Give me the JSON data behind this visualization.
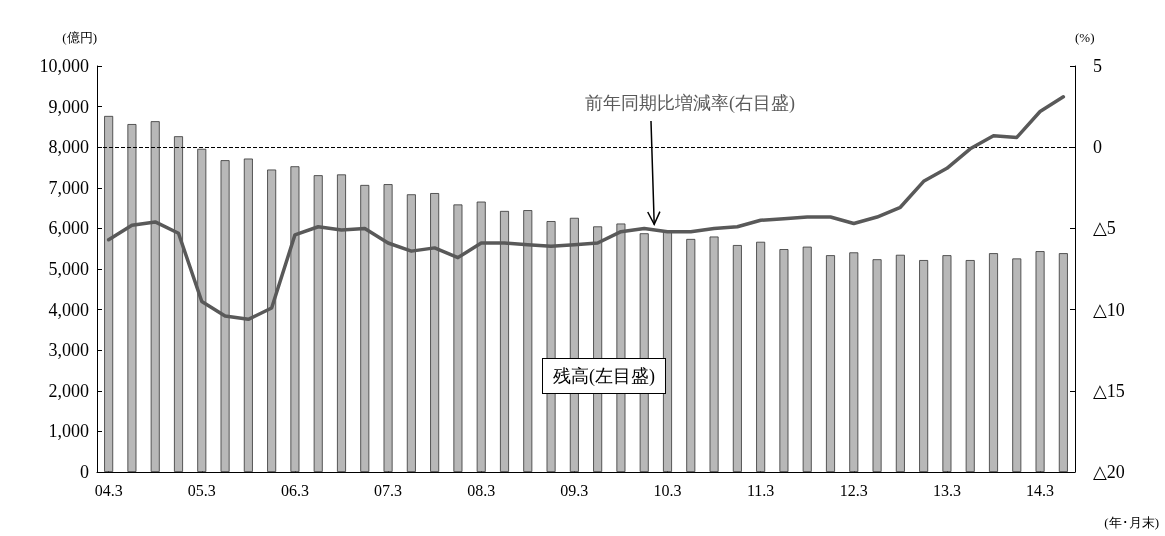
{
  "chart_data": {
    "type": "bar",
    "ylabel": "(億円)",
    "y2label": "(%)",
    "xlabel": "(年･月末)",
    "categories": [
      "04.3",
      null,
      null,
      null,
      "05.3",
      null,
      null,
      null,
      "06.3",
      null,
      null,
      null,
      "07.3",
      null,
      null,
      null,
      "08.3",
      null,
      null,
      null,
      "09.3",
      null,
      null,
      null,
      "10.3",
      null,
      null,
      null,
      "11.3",
      null,
      null,
      null,
      "12.3",
      null,
      null,
      null,
      "13.3",
      null,
      null,
      null,
      "14.3",
      null
    ],
    "series": [
      {
        "name": "残高(左目盛)",
        "color": "#b8b8b8",
        "values": [
          8770,
          8570,
          8640,
          8270,
          7960,
          7680,
          7720,
          7450,
          7530,
          7310,
          7330,
          7070,
          7090,
          6840,
          6870,
          6590,
          6660,
          6430,
          6450,
          6180,
          6260,
          6050,
          6120,
          5880,
          5920,
          5740,
          5800,
          5590,
          5670,
          5490,
          5550,
          5340,
          5410,
          5240,
          5350,
          5220,
          5340,
          5220,
          5390,
          5260,
          5440,
          5390
        ]
      },
      {
        "name": "前年同期比増減率(右目盛)",
        "type": "line",
        "axis": "y2",
        "color": "#595959",
        "values": [
          -5.7,
          -4.8,
          -4.6,
          -5.3,
          -9.5,
          -10.4,
          -10.6,
          -9.9,
          -5.4,
          -4.9,
          -5.1,
          -5.0,
          -5.9,
          -6.4,
          -6.2,
          -6.8,
          -5.9,
          -5.9,
          -6.0,
          -6.1,
          -6.0,
          -5.9,
          -5.2,
          -5.0,
          -5.2,
          -5.2,
          -5.0,
          -4.9,
          -4.5,
          -4.4,
          -4.3,
          -4.3,
          -4.7,
          -4.3,
          -3.7,
          -2.1,
          -1.3,
          -0.1,
          0.7,
          0.6,
          2.2,
          3.1
        ]
      }
    ],
    "ylim": [
      0,
      10000
    ],
    "yticks": [
      0,
      {
        "value": 1000,
        "label": "1,000"
      },
      {
        "value": 2000,
        "label": "2,000"
      },
      {
        "value": 3000,
        "label": "3,000"
      },
      {
        "value": 4000,
        "label": "4,000"
      },
      {
        "value": 5000,
        "label": "5,000"
      },
      {
        "value": 6000,
        "label": "6,000"
      },
      {
        "value": 7000,
        "label": "7,000"
      },
      {
        "value": 8000,
        "label": "8,000"
      },
      {
        "value": 9000,
        "label": "9,000"
      },
      {
        "value": 10000,
        "label": "10,000"
      }
    ],
    "y2lim": [
      -20,
      5
    ],
    "y2ticks": [
      {
        "value": -20,
        "label": "△20"
      },
      {
        "value": -15,
        "label": "△15"
      },
      {
        "value": -10,
        "label": "△10"
      },
      {
        "value": -5,
        "label": "△5"
      },
      0,
      5
    ],
    "ref_lines": [
      {
        "axis": "y2",
        "value": 0,
        "color": "#000000",
        "line_style": "dashed"
      }
    ],
    "marker": "none",
    "line_style": "solid",
    "grid": false,
    "legend": false
  }
}
